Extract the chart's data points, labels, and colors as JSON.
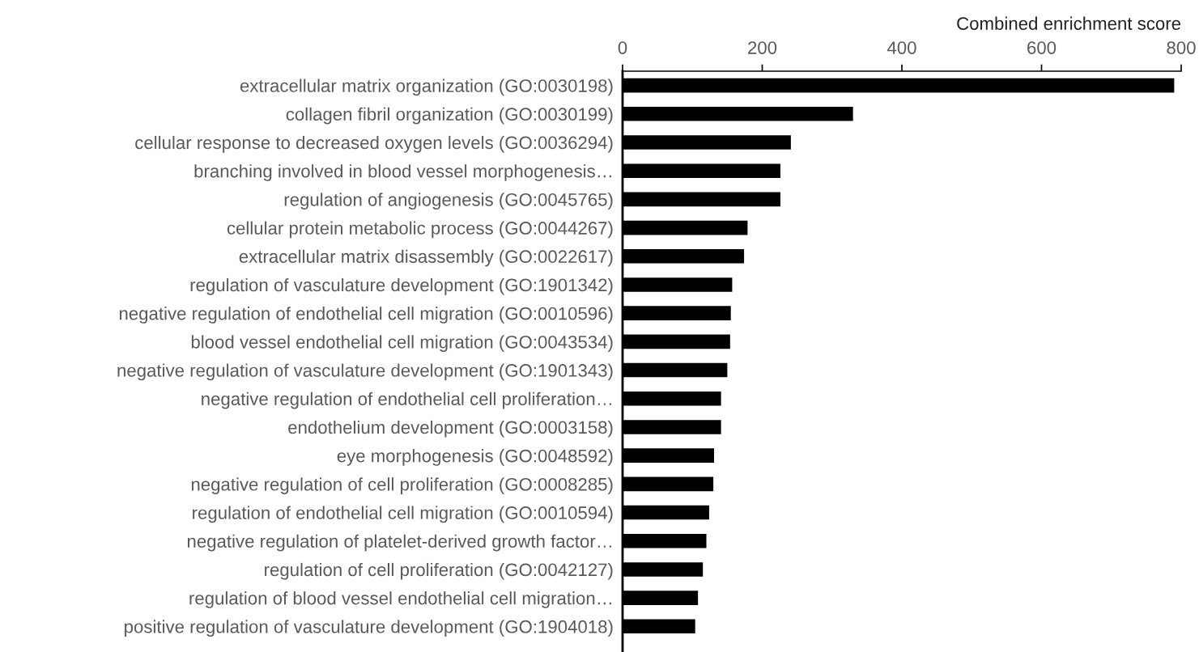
{
  "chart_data": {
    "type": "bar",
    "orientation": "horizontal",
    "xlabel": "Combined enrichment score",
    "categories": [
      "extracellular matrix organization (GO:0030198)",
      "collagen fibril organization (GO:0030199)",
      "cellular response to decreased oxygen levels (GO:0036294)",
      "branching involved in blood vessel morphogenesis…",
      "regulation of angiogenesis (GO:0045765)",
      "cellular protein metabolic process (GO:0044267)",
      "extracellular matrix disassembly (GO:0022617)",
      "regulation of vasculature development (GO:1901342)",
      "negative regulation of endothelial cell migration (GO:0010596)",
      "blood vessel endothelial cell migration (GO:0043534)",
      "negative regulation of vasculature development (GO:1901343)",
      "negative regulation of endothelial cell proliferation…",
      "endothelium development (GO:0003158)",
      "eye morphogenesis (GO:0048592)",
      "negative regulation of cell proliferation (GO:0008285)",
      "regulation of endothelial cell migration (GO:0010594)",
      "negative regulation of platelet-derived growth factor…",
      "regulation of cell proliferation (GO:0042127)",
      "regulation of blood vessel endothelial cell migration…",
      "positive regulation of vasculature development (GO:1904018)"
    ],
    "values": [
      790,
      330,
      241,
      226,
      226,
      179,
      174,
      157,
      155,
      154,
      150,
      141,
      141,
      131,
      130,
      124,
      120,
      115,
      108,
      104
    ],
    "color": "#000000",
    "xlim": [
      0,
      800
    ],
    "xticks": [
      0,
      200,
      400,
      600,
      800
    ],
    "grid": false
  }
}
